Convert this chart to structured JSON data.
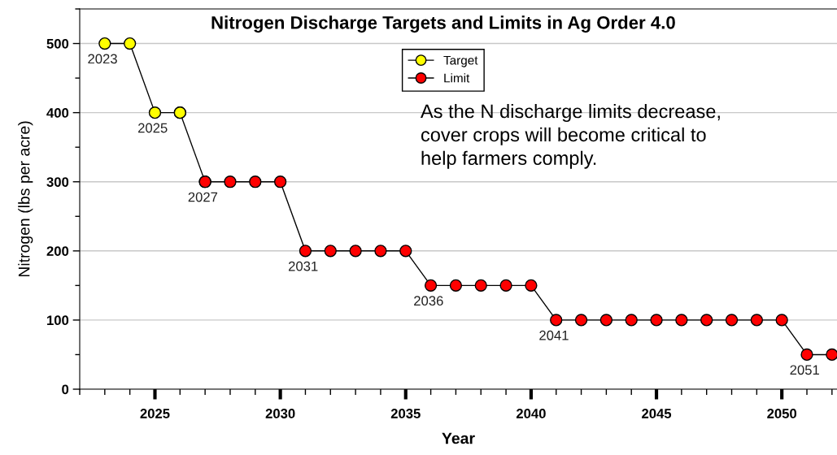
{
  "chart_data": {
    "type": "line",
    "title": "Nitrogen Discharge Targets and Limits in Ag Order 4.0",
    "xlabel": "Year",
    "ylabel": "Nitrogen (lbs per acre)",
    "series": [
      {
        "color": "#000000",
        "marker": "circle",
        "x": [
          2026,
          2027
        ],
        "values": [
          400,
          300
        ]
      },
      {
        "name": "Target",
        "color": "#ffff00",
        "marker": "circle",
        "x": [
          2023,
          2024,
          2025,
          2026
        ],
        "values": [
          500,
          500,
          400,
          400
        ]
      },
      {
        "name": "Limit",
        "color": "#ff0000",
        "marker": "circle",
        "x": [
          2027,
          2028,
          2029,
          2030,
          2031,
          2032,
          2033,
          2034,
          2035,
          2036,
          2037,
          2038,
          2039,
          2040,
          2041,
          2042,
          2043,
          2044,
          2045,
          2046,
          2047,
          2048,
          2049,
          2050,
          2051,
          2052
        ],
        "values": [
          300,
          300,
          300,
          300,
          200,
          200,
          200,
          200,
          200,
          150,
          150,
          150,
          150,
          150,
          100,
          100,
          100,
          100,
          100,
          100,
          100,
          100,
          100,
          100,
          50,
          50
        ]
      }
    ],
    "annotations": [
      {
        "text": "2023",
        "x": 2023,
        "y": 500
      },
      {
        "text": "2025",
        "x": 2025,
        "y": 400
      },
      {
        "text": "2027",
        "x": 2027,
        "y": 300
      },
      {
        "text": "2031",
        "x": 2031,
        "y": 200
      },
      {
        "text": "2036",
        "x": 2036,
        "y": 150
      },
      {
        "text": "2041",
        "x": 2041,
        "y": 100
      },
      {
        "text": "2051",
        "x": 2051,
        "y": 50
      },
      "As the N discharge limits decrease,\ncover crops will become critical to\nhelp farmers comply."
    ],
    "xlim": [
      2022,
      2052.2
    ],
    "xticks": [
      2025,
      2030,
      2035,
      2040,
      2045,
      2050
    ],
    "ylim": [
      0,
      550
    ],
    "yticks": [
      0,
      100,
      200,
      300,
      400,
      500
    ],
    "grid": "y",
    "legend": "top"
  }
}
